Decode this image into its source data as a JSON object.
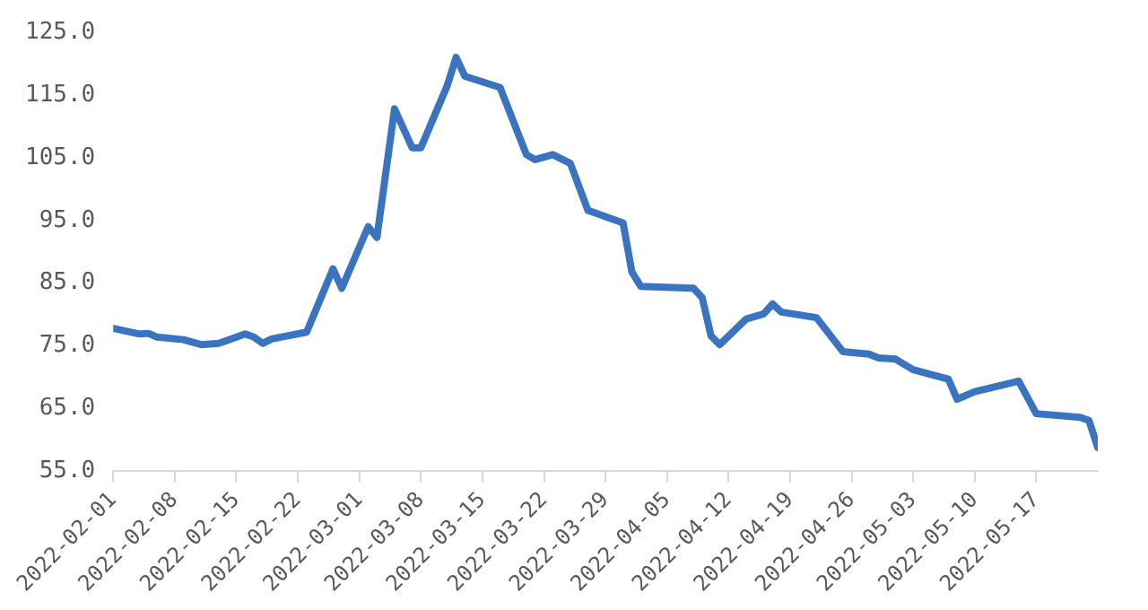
{
  "chart_data": {
    "type": "line",
    "x": [
      "2022-02-01",
      "2022-02-04",
      "2022-02-05",
      "2022-02-06",
      "2022-02-09",
      "2022-02-11",
      "2022-02-13",
      "2022-02-16",
      "2022-02-17",
      "2022-02-18",
      "2022-02-19",
      "2022-02-23",
      "2022-02-26",
      "2022-02-27",
      "2022-03-02",
      "2022-03-03",
      "2022-03-05",
      "2022-03-07",
      "2022-03-08",
      "2022-03-11",
      "2022-03-12",
      "2022-03-13",
      "2022-03-17",
      "2022-03-20",
      "2022-03-21",
      "2022-03-23",
      "2022-03-25",
      "2022-03-27",
      "2022-03-31",
      "2022-04-01",
      "2022-04-02",
      "2022-04-08",
      "2022-04-09",
      "2022-04-10",
      "2022-04-11",
      "2022-04-14",
      "2022-04-16",
      "2022-04-17",
      "2022-04-18",
      "2022-04-22",
      "2022-04-25",
      "2022-04-28",
      "2022-04-29",
      "2022-05-01",
      "2022-05-03",
      "2022-05-07",
      "2022-05-08",
      "2022-05-10",
      "2022-05-15",
      "2022-05-17",
      "2022-05-22",
      "2022-05-23",
      "2022-05-24"
    ],
    "values": [
      77.8,
      76.9,
      77.0,
      76.4,
      76.0,
      75.2,
      75.4,
      76.9,
      76.4,
      75.4,
      76.1,
      77.2,
      87.3,
      84.2,
      94.0,
      92.3,
      112.8,
      106.6,
      106.6,
      116.5,
      121.0,
      118.0,
      116.2,
      105.5,
      104.7,
      105.5,
      104.1,
      96.6,
      94.6,
      86.8,
      84.5,
      84.2,
      82.7,
      76.6,
      75.2,
      79.3,
      80.1,
      81.7,
      80.4,
      79.5,
      74.1,
      73.7,
      73.1,
      72.9,
      71.2,
      69.7,
      66.5,
      67.7,
      69.4,
      64.2,
      63.6,
      63.1,
      58.8
    ],
    "color": "#3a74c0",
    "xlim": [
      "2022-02-01",
      "2022-05-24"
    ],
    "xticks": [
      "2022-02-01",
      "2022-02-08",
      "2022-02-15",
      "2022-02-22",
      "2022-03-01",
      "2022-03-08",
      "2022-03-15",
      "2022-03-22",
      "2022-03-29",
      "2022-04-05",
      "2022-04-12",
      "2022-04-19",
      "2022-04-26",
      "2022-05-03",
      "2022-05-10",
      "2022-05-17"
    ],
    "ylim": [
      55,
      125
    ],
    "yticks": [
      {
        "value": 55,
        "label": "55.0"
      },
      {
        "value": 65,
        "label": "65.0"
      },
      {
        "value": 75,
        "label": "75.0"
      },
      {
        "value": 85,
        "label": "85.0"
      },
      {
        "value": 95,
        "label": "95.0"
      },
      {
        "value": 105,
        "label": "105.0"
      },
      {
        "value": 115,
        "label": "115.0"
      },
      {
        "value": 125,
        "label": "125.0"
      }
    ],
    "grid": false,
    "legend": false,
    "marker": "none",
    "line_style": "solid"
  }
}
